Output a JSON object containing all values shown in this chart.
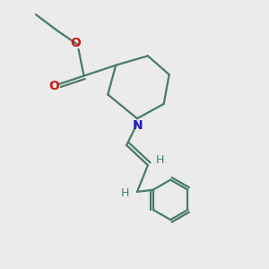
{
  "bg_color": "#ebebeb",
  "bond_color": "#4a7a6a",
  "N_color": "#1a1acc",
  "O_color": "#cc1a1a",
  "line_width": 1.6,
  "figsize": [
    3.0,
    3.0
  ],
  "dpi": 100,
  "xlim": [
    0,
    10
  ],
  "ylim": [
    0,
    10
  ]
}
